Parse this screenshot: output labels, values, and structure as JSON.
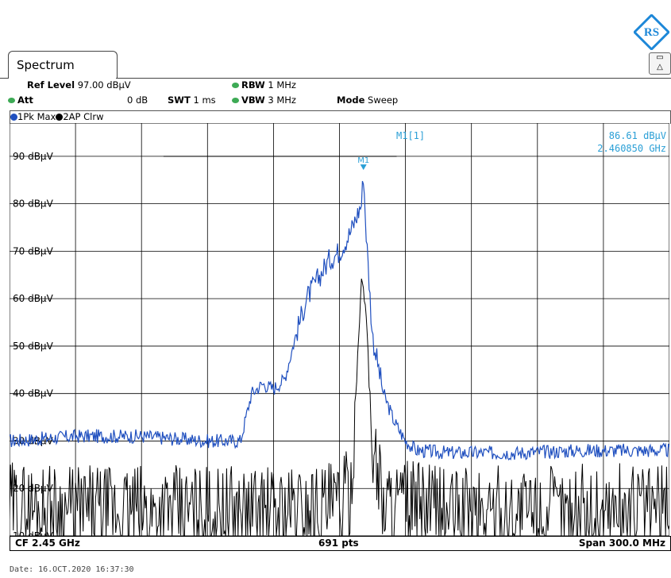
{
  "tab": {
    "title": "Spectrum"
  },
  "header": {
    "ref_level_label": "Ref Level",
    "ref_level_value": "97.00 dBµV",
    "att_label": "Att",
    "att_value": "0 dB",
    "swt_label": "SWT",
    "swt_value": "1 ms",
    "rbw_label": "RBW",
    "rbw_value": "1 MHz",
    "vbw_label": "VBW",
    "vbw_value": "3 MHz",
    "mode_label": "Mode",
    "mode_value": "Sweep"
  },
  "traces": {
    "trace1": "1Pk Max",
    "trace2": "2AP Clrw"
  },
  "marker": {
    "name": "M1[1]",
    "level": "86.61 dBµV",
    "freq": "2.460850 GHz",
    "label": "M1"
  },
  "footer": {
    "center": "CF 2.45 GHz",
    "points": "691 pts",
    "span": "Span 300.0 MHz"
  },
  "date": "Date: 16.OCT.2020  16:37:30",
  "colors": {
    "trace1": "#1f4fbf",
    "trace2": "#000000",
    "marker": "#2a9fd6",
    "grid": "#000000",
    "status_dot": "#3daa55"
  },
  "logo_text": "RS",
  "chart_data": {
    "type": "line",
    "x_unit": "GHz",
    "xlim": [
      2.3,
      2.6
    ],
    "ylim": [
      10,
      97
    ],
    "y_ticks": [
      90,
      80,
      70,
      60,
      50,
      40,
      30,
      20,
      10
    ],
    "y_tick_labels": [
      "90 dBµV",
      "80 dBµV",
      "70 dBµV",
      "60 dBµV",
      "50 dBµV",
      "40 dBµV",
      "30 dBµV",
      "20 dBµV",
      "10 dBµV"
    ],
    "grid": true,
    "marker_line": 90,
    "series": [
      {
        "name": "1Pk Max",
        "x": [
          2.3,
          2.33,
          2.36,
          2.39,
          2.405,
          2.41,
          2.415,
          2.42,
          2.425,
          2.43,
          2.435,
          2.44,
          2.445,
          2.45,
          2.455,
          2.46,
          2.4609,
          2.462,
          2.465,
          2.47,
          2.475,
          2.48,
          2.485,
          2.5,
          2.53,
          2.56,
          2.6
        ],
        "y": [
          30,
          31,
          31,
          30,
          30,
          40,
          42,
          41,
          43,
          52,
          60,
          64,
          68,
          70,
          74,
          80,
          86.61,
          75,
          52,
          40,
          34,
          30,
          28,
          27.5,
          27.5,
          28,
          28
        ]
      },
      {
        "name": "2AP Clrw",
        "x": [
          2.3,
          2.34,
          2.38,
          2.42,
          2.44,
          2.45,
          2.455,
          2.458,
          2.46,
          2.462,
          2.465,
          2.47,
          2.5,
          2.55,
          2.6
        ],
        "y": [
          16,
          15,
          15,
          15,
          16,
          16,
          19,
          45,
          64,
          58,
          30,
          17,
          15,
          15,
          16
        ]
      }
    ]
  }
}
